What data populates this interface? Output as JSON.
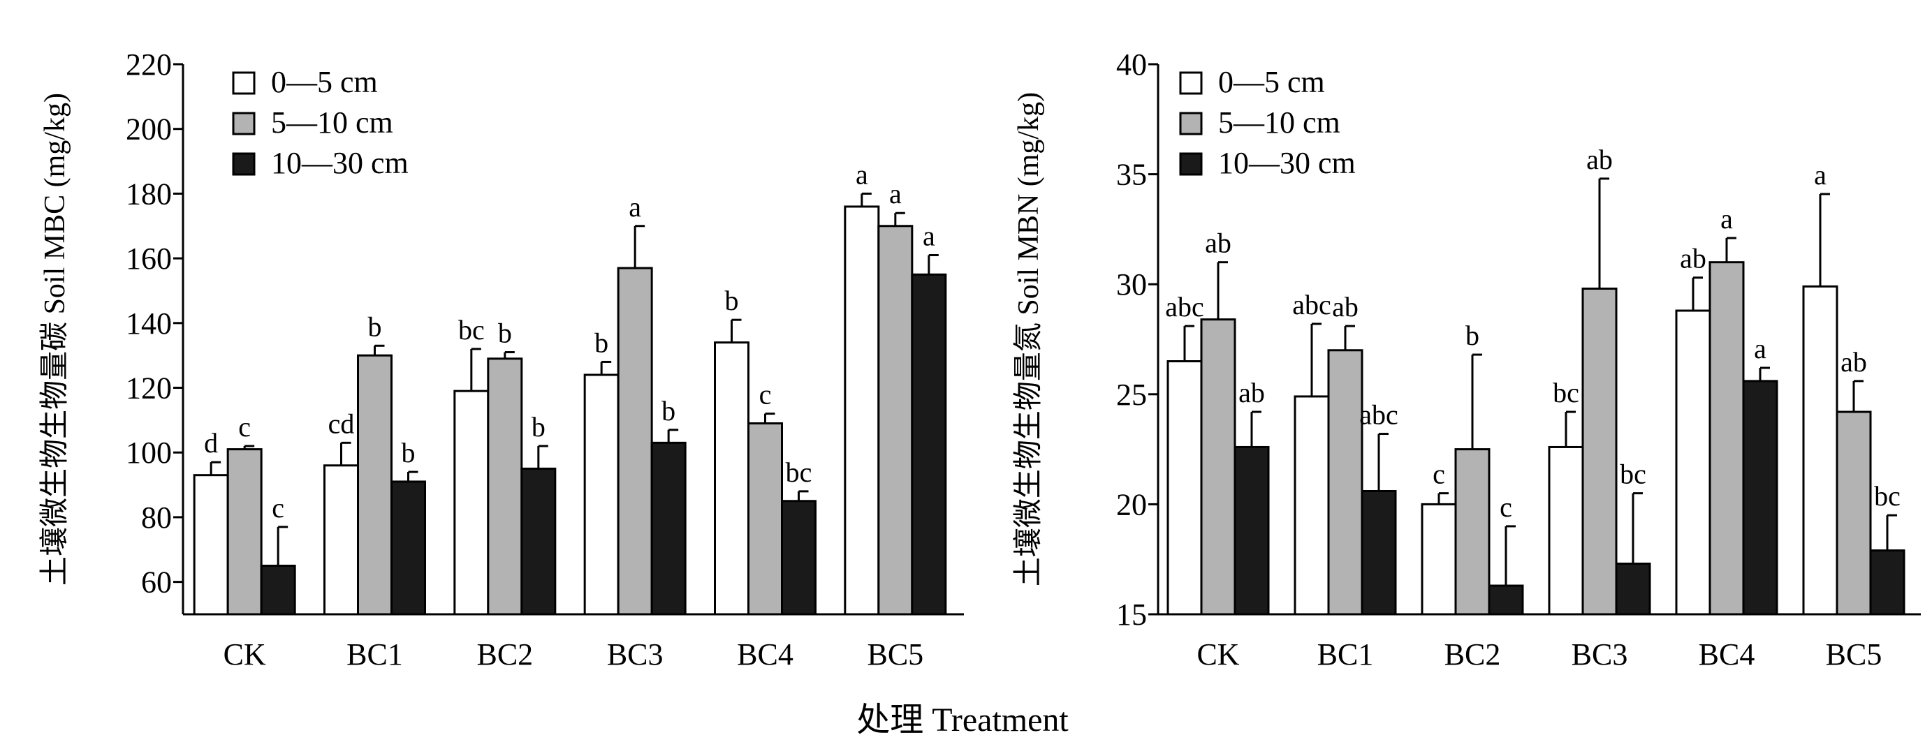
{
  "figure": {
    "common_xlabel": "处理 Treatment"
  },
  "colors": {
    "bar_0_5": "#ffffff",
    "bar_5_10": "#b3b3b3",
    "bar_10_30": "#1a1a1a",
    "stroke": "#000000"
  },
  "chart_data": [
    {
      "type": "bar",
      "title": "",
      "xlabel": "",
      "ylabel": "土壤微生物生物量碳 Soil MBC (mg/kg)",
      "ylim": [
        50,
        220
      ],
      "yticks": [
        60,
        80,
        100,
        120,
        140,
        160,
        180,
        200,
        220
      ],
      "grid": false,
      "legend_position": "top-left",
      "categories": [
        "CK",
        "BC1",
        "BC2",
        "BC3",
        "BC4",
        "BC5"
      ],
      "series": [
        {
          "name": "0—5 cm",
          "values": [
            93,
            96,
            119,
            124,
            134,
            176
          ],
          "errors": [
            4,
            7,
            13,
            4,
            7,
            4
          ],
          "labels": [
            "d",
            "cd",
            "bc",
            "b",
            "b",
            "a"
          ]
        },
        {
          "name": "5—10 cm",
          "values": [
            101,
            130,
            129,
            157,
            109,
            170
          ],
          "errors": [
            1,
            3,
            2,
            13,
            3,
            4
          ],
          "labels": [
            "c",
            "b",
            "b",
            "a",
            "c",
            "a"
          ]
        },
        {
          "name": "10—30 cm",
          "values": [
            65,
            91,
            95,
            103,
            85,
            155
          ],
          "errors": [
            12,
            3,
            7,
            4,
            3,
            6
          ],
          "labels": [
            "c",
            "b",
            "b",
            "b",
            "bc",
            "a"
          ]
        }
      ]
    },
    {
      "type": "bar",
      "title": "",
      "xlabel": "",
      "ylabel": "土壤微生物生物量氮 Soil MBN (mg/kg)",
      "ylim": [
        15,
        40
      ],
      "yticks": [
        15,
        20,
        25,
        30,
        35,
        40
      ],
      "grid": false,
      "legend_position": "top-left",
      "categories": [
        "CK",
        "BC1",
        "BC2",
        "BC3",
        "BC4",
        "BC5"
      ],
      "series": [
        {
          "name": "0—5 cm",
          "values": [
            26.5,
            24.9,
            20.0,
            22.6,
            28.8,
            29.9
          ],
          "errors": [
            1.6,
            3.3,
            0.5,
            1.6,
            1.5,
            4.2
          ],
          "labels": [
            "abc",
            "abc",
            "c",
            "bc",
            "ab",
            "a"
          ]
        },
        {
          "name": "5—10 cm",
          "values": [
            28.4,
            27.0,
            22.5,
            29.8,
            31.0,
            24.2
          ],
          "errors": [
            2.6,
            1.1,
            4.3,
            5.0,
            1.1,
            1.4
          ],
          "labels": [
            "ab",
            "ab",
            "b",
            "ab",
            "a",
            "ab"
          ]
        },
        {
          "name": "10—30 cm",
          "values": [
            22.6,
            20.6,
            16.3,
            17.3,
            25.6,
            17.9
          ],
          "errors": [
            1.6,
            2.6,
            2.7,
            3.2,
            0.6,
            1.6
          ],
          "labels": [
            "ab",
            "abc",
            "c",
            "bc",
            "a",
            "bc"
          ]
        }
      ]
    }
  ]
}
